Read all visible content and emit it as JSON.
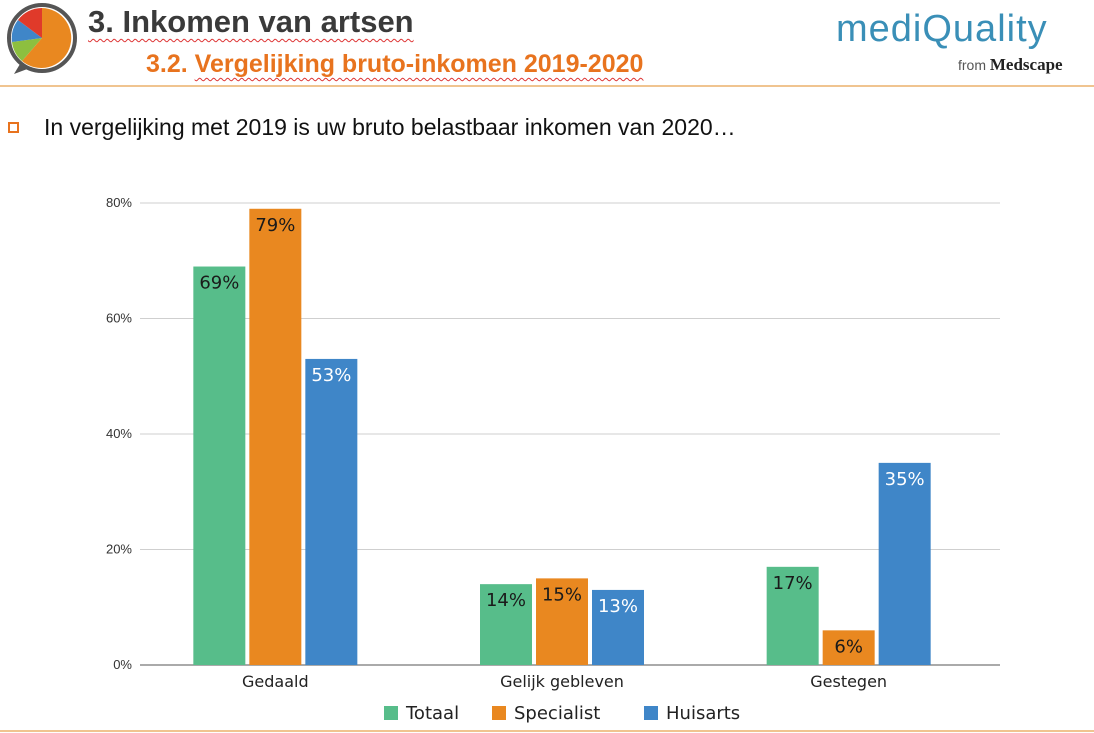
{
  "header": {
    "title": "3. Inkomen van artsen",
    "subtitle_prefix": "3.2. ",
    "subtitle_main": "Vergelijking bruto-inkomen 2019-2020",
    "brand_name": "mediQuality",
    "brand_from": "from",
    "brand_parent": "Medscape"
  },
  "bullet": "In vergelijking met 2019 is uw bruto belastbaar inkomen van 2020…",
  "colors": {
    "totaal": "#57bd8a",
    "specialist": "#e98820",
    "huisarts": "#3f86c8",
    "accent": "#e8731e"
  },
  "chart_data": {
    "type": "bar",
    "title": "",
    "xlabel": "",
    "ylabel": "",
    "ylim": [
      0,
      80
    ],
    "yticks": [
      0,
      20,
      40,
      60,
      80
    ],
    "ytick_labels": [
      "0%",
      "20%",
      "40%",
      "60%",
      "80%"
    ],
    "grid": true,
    "legend_position": "bottom",
    "categories": [
      "Gedaald",
      "Gelijk gebleven",
      "Gestegen"
    ],
    "series": [
      {
        "name": "Totaal",
        "values": [
          69,
          14,
          17
        ],
        "labels": [
          "69%",
          "14%",
          "17%"
        ],
        "color": "#57bd8a",
        "label_color": "#1a1a1a"
      },
      {
        "name": "Specialist",
        "values": [
          79,
          15,
          6
        ],
        "labels": [
          "79%",
          "15%",
          "6%"
        ],
        "color": "#e98820",
        "label_color": "#1a1a1a"
      },
      {
        "name": "Huisarts",
        "values": [
          53,
          13,
          35
        ],
        "labels": [
          "53%",
          "13%",
          "35%"
        ],
        "color": "#3f86c8",
        "label_color": "#ffffff"
      }
    ]
  }
}
